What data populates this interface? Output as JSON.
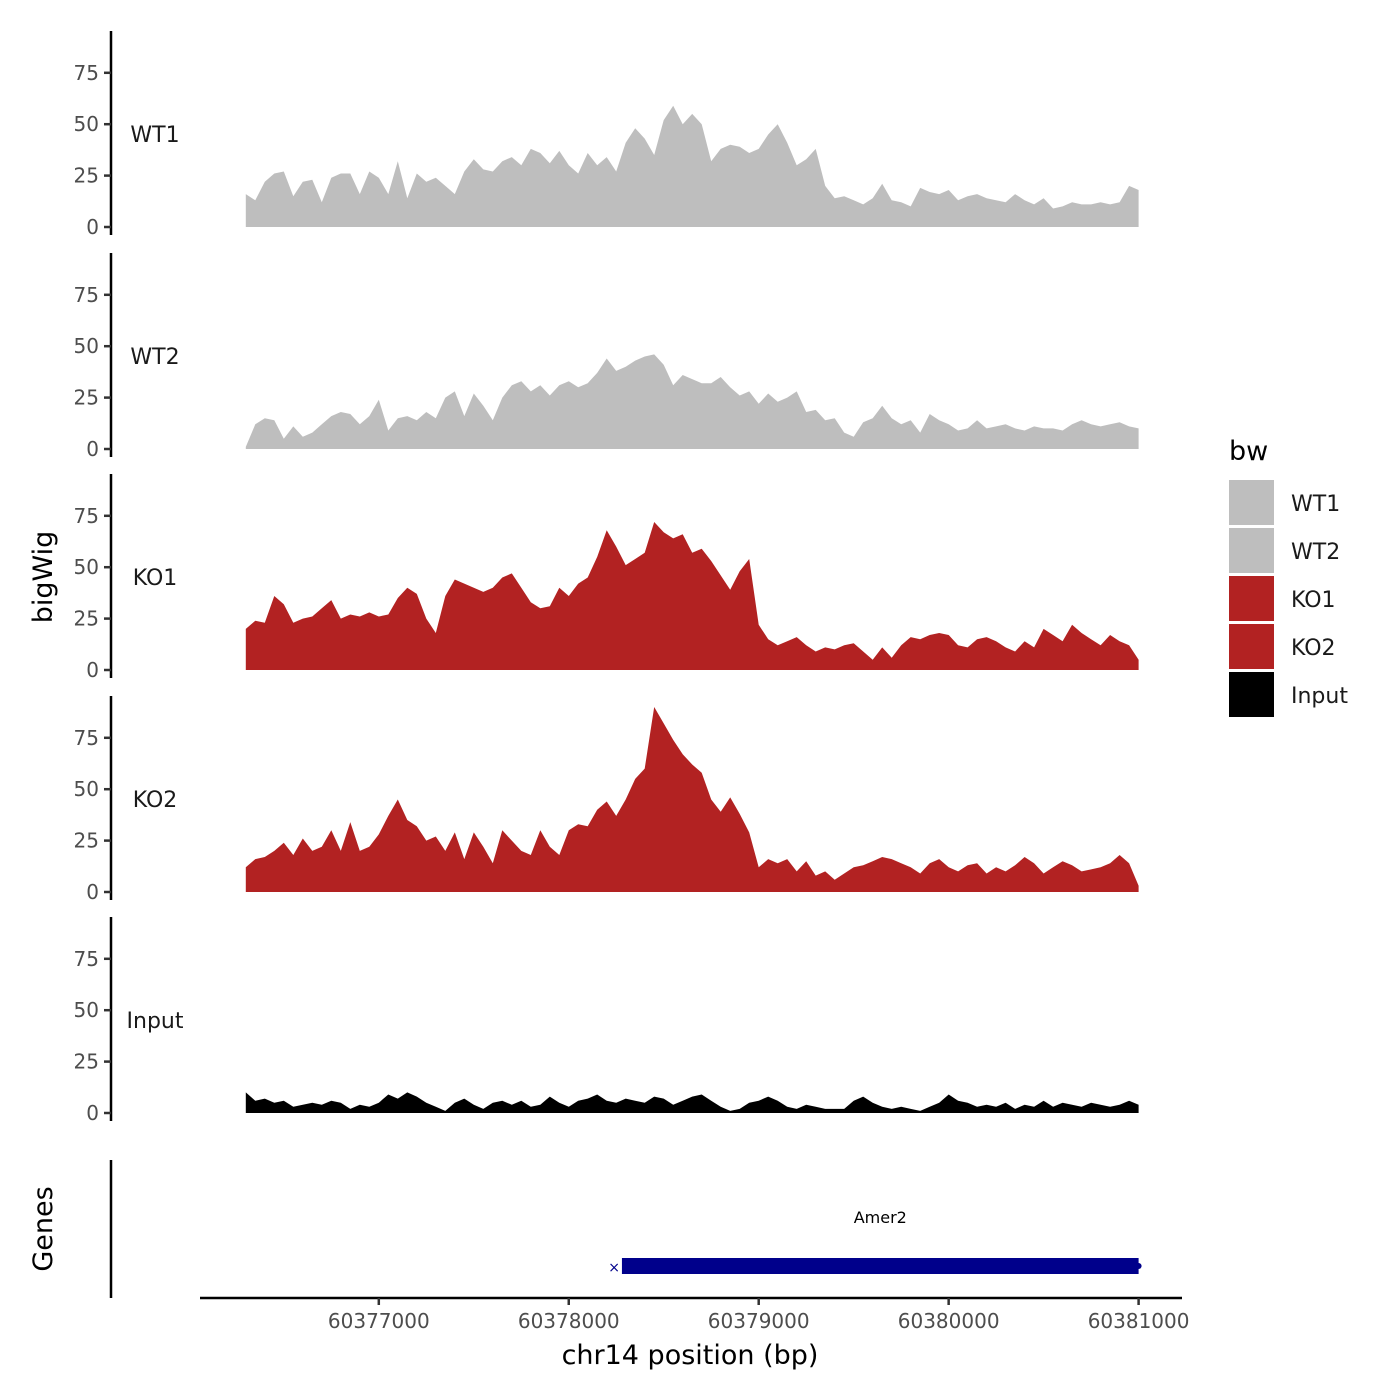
{
  "chart_data": {
    "type": "area",
    "title": "",
    "xlabel": "chr14 position (bp)",
    "ylabel": "bigWig",
    "genes_label": "Genes",
    "xlim": [
      60375800,
      60381250
    ],
    "ylim": [
      0,
      95
    ],
    "x_ticks": [
      60377000,
      60378000,
      60379000,
      60380000,
      60381000
    ],
    "x_tick_labels": [
      "60377000",
      "60378000",
      "60379000",
      "60380000",
      "60381000"
    ],
    "y_ticks": [
      0,
      25,
      50,
      75
    ],
    "y_tick_labels": [
      "0",
      "25",
      "50",
      "75"
    ],
    "legend": {
      "title": "bw",
      "entries": [
        {
          "name": "WT1",
          "color": "#bebebe"
        },
        {
          "name": "WT2",
          "color": "#bebebe"
        },
        {
          "name": "KO1",
          "color": "#b22222"
        },
        {
          "name": "KO2",
          "color": "#b22222"
        },
        {
          "name": "Input",
          "color": "#000000"
        }
      ]
    },
    "series": [
      {
        "name": "WT1",
        "color": "#bebebe",
        "x": [
          60376300,
          60376350,
          60376400,
          60376450,
          60376500,
          60376550,
          60376600,
          60376650,
          60376700,
          60376750,
          60376800,
          60376850,
          60376900,
          60376950,
          60377000,
          60377050,
          60377100,
          60377150,
          60377200,
          60377250,
          60377300,
          60377350,
          60377400,
          60377450,
          60377500,
          60377550,
          60377600,
          60377650,
          60377700,
          60377750,
          60377800,
          60377850,
          60377900,
          60377950,
          60378000,
          60378050,
          60378100,
          60378150,
          60378200,
          60378250,
          60378300,
          60378350,
          60378400,
          60378450,
          60378500,
          60378550,
          60378600,
          60378650,
          60378700,
          60378750,
          60378800,
          60378850,
          60378900,
          60378950,
          60379000,
          60379050,
          60379100,
          60379150,
          60379200,
          60379250,
          60379300,
          60379350,
          60379400,
          60379450,
          60379500,
          60379550,
          60379600,
          60379650,
          60379700,
          60379750,
          60379800,
          60379850,
          60379900,
          60379950,
          60380000,
          60380050,
          60380100,
          60380150,
          60380200,
          60380250,
          60380300,
          60380350,
          60380400,
          60380450,
          60380500,
          60380550,
          60380600,
          60380650,
          60380700,
          60380750,
          60380800,
          60380850,
          60380900,
          60380950,
          60381000
        ],
        "values": [
          16,
          13,
          22,
          26,
          27,
          15,
          22,
          23,
          12,
          24,
          26,
          26,
          16,
          27,
          24,
          16,
          32,
          14,
          26,
          22,
          24,
          20,
          16,
          27,
          33,
          28,
          27,
          32,
          34,
          30,
          38,
          36,
          31,
          37,
          30,
          26,
          36,
          30,
          34,
          27,
          41,
          48,
          43,
          35,
          52,
          59,
          50,
          55,
          50,
          32,
          38,
          40,
          39,
          36,
          38,
          45,
          50,
          41,
          30,
          33,
          38,
          20,
          14,
          15,
          13,
          11,
          14,
          21,
          13,
          12,
          10,
          19,
          17,
          16,
          18,
          13,
          15,
          16,
          14,
          13,
          12,
          16,
          13,
          11,
          14,
          9,
          10,
          12,
          11,
          11,
          12,
          11,
          12,
          20,
          18
        ]
      },
      {
        "name": "WT2",
        "color": "#bebebe",
        "x": [
          60376300,
          60376350,
          60376400,
          60376450,
          60376500,
          60376550,
          60376600,
          60376650,
          60376700,
          60376750,
          60376800,
          60376850,
          60376900,
          60376950,
          60377000,
          60377050,
          60377100,
          60377150,
          60377200,
          60377250,
          60377300,
          60377350,
          60377400,
          60377450,
          60377500,
          60377550,
          60377600,
          60377650,
          60377700,
          60377750,
          60377800,
          60377850,
          60377900,
          60377950,
          60378000,
          60378050,
          60378100,
          60378150,
          60378200,
          60378250,
          60378300,
          60378350,
          60378400,
          60378450,
          60378500,
          60378550,
          60378600,
          60378650,
          60378700,
          60378750,
          60378800,
          60378850,
          60378900,
          60378950,
          60379000,
          60379050,
          60379100,
          60379150,
          60379200,
          60379250,
          60379300,
          60379350,
          60379400,
          60379450,
          60379500,
          60379550,
          60379600,
          60379650,
          60379700,
          60379750,
          60379800,
          60379850,
          60379900,
          60379950,
          60380000,
          60380050,
          60380100,
          60380150,
          60380200,
          60380250,
          60380300,
          60380350,
          60380400,
          60380450,
          60380500,
          60380550,
          60380600,
          60380650,
          60380700,
          60380750,
          60380800,
          60380850,
          60380900,
          60380950,
          60381000
        ],
        "values": [
          1,
          12,
          15,
          14,
          5,
          11,
          6,
          8,
          12,
          16,
          18,
          17,
          12,
          16,
          24,
          9,
          15,
          16,
          14,
          18,
          15,
          25,
          28,
          16,
          27,
          21,
          14,
          25,
          31,
          33,
          28,
          31,
          26,
          31,
          33,
          30,
          32,
          37,
          44,
          38,
          40,
          43,
          45,
          46,
          41,
          31,
          36,
          34,
          32,
          32,
          35,
          30,
          26,
          28,
          22,
          27,
          23,
          25,
          28,
          18,
          19,
          14,
          15,
          8,
          6,
          13,
          15,
          21,
          15,
          12,
          14,
          8,
          17,
          14,
          12,
          9,
          10,
          14,
          10,
          11,
          12,
          10,
          9,
          11,
          10,
          10,
          9,
          12,
          14,
          12,
          11,
          12,
          13,
          11,
          10
        ]
      },
      {
        "name": "KO1",
        "color": "#b22222",
        "x": [
          60376300,
          60376350,
          60376400,
          60376450,
          60376500,
          60376550,
          60376600,
          60376650,
          60376700,
          60376750,
          60376800,
          60376850,
          60376900,
          60376950,
          60377000,
          60377050,
          60377100,
          60377150,
          60377200,
          60377250,
          60377300,
          60377350,
          60377400,
          60377450,
          60377500,
          60377550,
          60377600,
          60377650,
          60377700,
          60377750,
          60377800,
          60377850,
          60377900,
          60377950,
          60378000,
          60378050,
          60378100,
          60378150,
          60378200,
          60378250,
          60378300,
          60378350,
          60378400,
          60378450,
          60378500,
          60378550,
          60378600,
          60378650,
          60378700,
          60378750,
          60378800,
          60378850,
          60378900,
          60378950,
          60379000,
          60379050,
          60379100,
          60379150,
          60379200,
          60379250,
          60379300,
          60379350,
          60379400,
          60379450,
          60379500,
          60379550,
          60379600,
          60379650,
          60379700,
          60379750,
          60379800,
          60379850,
          60379900,
          60379950,
          60380000,
          60380050,
          60380100,
          60380150,
          60380200,
          60380250,
          60380300,
          60380350,
          60380400,
          60380450,
          60380500,
          60380550,
          60380600,
          60380650,
          60380700,
          60380750,
          60380800,
          60380850,
          60380900,
          60380950,
          60381000
        ],
        "values": [
          20,
          24,
          23,
          36,
          32,
          23,
          25,
          26,
          30,
          34,
          25,
          27,
          26,
          28,
          26,
          27,
          35,
          40,
          37,
          25,
          18,
          36,
          44,
          42,
          40,
          38,
          40,
          45,
          47,
          40,
          33,
          30,
          31,
          40,
          36,
          42,
          45,
          55,
          68,
          60,
          51,
          54,
          57,
          72,
          67,
          64,
          66,
          57,
          59,
          53,
          46,
          39,
          48,
          54,
          22,
          15,
          12,
          14,
          16,
          12,
          9,
          11,
          10,
          12,
          13,
          9,
          5,
          11,
          6,
          12,
          16,
          15,
          17,
          18,
          17,
          12,
          11,
          15,
          16,
          14,
          11,
          9,
          14,
          11,
          20,
          17,
          14,
          22,
          18,
          15,
          12,
          17,
          14,
          12,
          5
        ]
      },
      {
        "name": "KO2",
        "color": "#b22222",
        "x": [
          60376300,
          60376350,
          60376400,
          60376450,
          60376500,
          60376550,
          60376600,
          60376650,
          60376700,
          60376750,
          60376800,
          60376850,
          60376900,
          60376950,
          60377000,
          60377050,
          60377100,
          60377150,
          60377200,
          60377250,
          60377300,
          60377350,
          60377400,
          60377450,
          60377500,
          60377550,
          60377600,
          60377650,
          60377700,
          60377750,
          60377800,
          60377850,
          60377900,
          60377950,
          60378000,
          60378050,
          60378100,
          60378150,
          60378200,
          60378250,
          60378300,
          60378350,
          60378400,
          60378450,
          60378500,
          60378550,
          60378600,
          60378650,
          60378700,
          60378750,
          60378800,
          60378850,
          60378900,
          60378950,
          60379000,
          60379050,
          60379100,
          60379150,
          60379200,
          60379250,
          60379300,
          60379350,
          60379400,
          60379450,
          60379500,
          60379550,
          60379600,
          60379650,
          60379700,
          60379750,
          60379800,
          60379850,
          60379900,
          60379950,
          60380000,
          60380050,
          60380100,
          60380150,
          60380200,
          60380250,
          60380300,
          60380350,
          60380400,
          60380450,
          60380500,
          60380550,
          60380600,
          60380650,
          60380700,
          60380750,
          60380800,
          60380850,
          60380900,
          60380950,
          60381000
        ],
        "values": [
          12,
          16,
          17,
          20,
          24,
          18,
          26,
          20,
          22,
          30,
          20,
          34,
          20,
          22,
          28,
          37,
          45,
          35,
          32,
          25,
          27,
          20,
          29,
          16,
          29,
          22,
          14,
          30,
          25,
          20,
          18,
          30,
          22,
          18,
          30,
          33,
          32,
          40,
          44,
          37,
          45,
          55,
          60,
          90,
          82,
          74,
          67,
          62,
          58,
          45,
          39,
          46,
          38,
          29,
          12,
          16,
          14,
          16,
          10,
          15,
          8,
          10,
          6,
          9,
          12,
          13,
          15,
          17,
          16,
          14,
          12,
          9,
          14,
          16,
          12,
          10,
          13,
          14,
          9,
          12,
          10,
          13,
          17,
          14,
          9,
          12,
          15,
          13,
          10,
          11,
          12,
          14,
          18,
          14,
          3
        ]
      },
      {
        "name": "Input",
        "color": "#000000",
        "x": [
          60376300,
          60376350,
          60376400,
          60376450,
          60376500,
          60376550,
          60376600,
          60376650,
          60376700,
          60376750,
          60376800,
          60376850,
          60376900,
          60376950,
          60377000,
          60377050,
          60377100,
          60377150,
          60377200,
          60377250,
          60377300,
          60377350,
          60377400,
          60377450,
          60377500,
          60377550,
          60377600,
          60377650,
          60377700,
          60377750,
          60377800,
          60377850,
          60377900,
          60377950,
          60378000,
          60378050,
          60378100,
          60378150,
          60378200,
          60378250,
          60378300,
          60378350,
          60378400,
          60378450,
          60378500,
          60378550,
          60378600,
          60378650,
          60378700,
          60378750,
          60378800,
          60378850,
          60378900,
          60378950,
          60379000,
          60379050,
          60379100,
          60379150,
          60379200,
          60379250,
          60379300,
          60379350,
          60379400,
          60379450,
          60379500,
          60379550,
          60379600,
          60379650,
          60379700,
          60379750,
          60379800,
          60379850,
          60379900,
          60379950,
          60380000,
          60380050,
          60380100,
          60380150,
          60380200,
          60380250,
          60380300,
          60380350,
          60380400,
          60380450,
          60380500,
          60380550,
          60380600,
          60380650,
          60380700,
          60380750,
          60380800,
          60380850,
          60380900,
          60380950,
          60381000
        ],
        "values": [
          10,
          6,
          7,
          5,
          6,
          3,
          4,
          5,
          4,
          6,
          5,
          2,
          4,
          3,
          5,
          9,
          7,
          10,
          8,
          5,
          3,
          1,
          5,
          7,
          4,
          2,
          5,
          6,
          4,
          6,
          3,
          4,
          8,
          5,
          3,
          6,
          7,
          9,
          6,
          5,
          7,
          6,
          5,
          8,
          7,
          4,
          6,
          8,
          9,
          6,
          3,
          1,
          2,
          5,
          6,
          8,
          6,
          3,
          2,
          4,
          3,
          2,
          2,
          2,
          6,
          8,
          5,
          3,
          2,
          3,
          2,
          1,
          3,
          5,
          9,
          6,
          5,
          3,
          4,
          3,
          5,
          2,
          4,
          3,
          6,
          3,
          5,
          4,
          3,
          5,
          4,
          3,
          4,
          6,
          4
        ]
      }
    ],
    "genes": [
      {
        "name": "Amer2",
        "start": 60378280,
        "end": 60381000,
        "color": "#00008b"
      }
    ]
  }
}
